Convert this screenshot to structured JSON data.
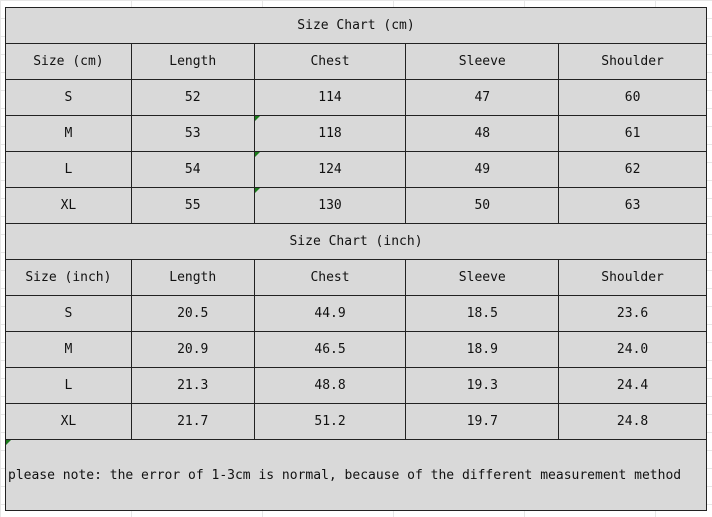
{
  "cm": {
    "title": "Size Chart (cm)",
    "headers": [
      "Size (cm)",
      "Length",
      "Chest",
      "Sleeve",
      "Shoulder"
    ],
    "rows": [
      [
        "S",
        "52",
        "114",
        "47",
        "60"
      ],
      [
        "M",
        "53",
        "118",
        "48",
        "61"
      ],
      [
        "L",
        "54",
        "124",
        "49",
        "62"
      ],
      [
        "XL",
        "55",
        "130",
        "50",
        "63"
      ]
    ]
  },
  "inch": {
    "title": "Size Chart (inch)",
    "headers": [
      "Size (inch)",
      "Length",
      "Chest",
      "Sleeve",
      "Shoulder"
    ],
    "rows": [
      [
        "S",
        "20.5",
        "44.9",
        "18.5",
        "23.6"
      ],
      [
        "M",
        "20.9",
        "46.5",
        "18.9",
        "24.0"
      ],
      [
        "L",
        "21.3",
        "48.8",
        "19.3",
        "24.4"
      ],
      [
        "XL",
        "21.7",
        "51.2",
        "19.7",
        "24.8"
      ]
    ]
  },
  "note": "please note: the error of 1-3cm is normal, because of the different measurement method",
  "colors": {
    "cell_bg": "#d9d9d9",
    "comment_marker": "#1a7a1a"
  }
}
